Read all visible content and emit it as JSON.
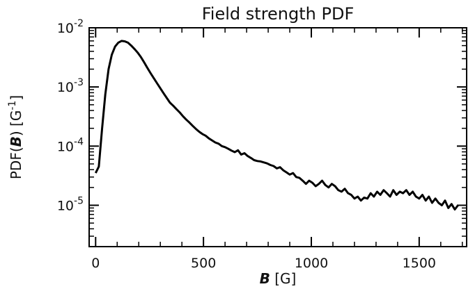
{
  "chart_data": {
    "type": "line",
    "title": "Field strength PDF",
    "xlabel": {
      "var": "B",
      "unit": "[G]"
    },
    "ylabel": {
      "prefix": "PDF(",
      "var": "B",
      "suffix": ") [G",
      "exp": "-1",
      "close": "]"
    },
    "xlim": [
      -30,
      1720
    ],
    "ylim": [
      2e-06,
      0.01
    ],
    "yscale": "log",
    "xticks": [
      0,
      500,
      1000,
      1500
    ],
    "xtick_labels": [
      "0",
      "500",
      "1000",
      "1500"
    ],
    "yticks": [
      {
        "value": 0.01,
        "base": "10",
        "exp": "-2"
      },
      {
        "value": 0.001,
        "base": "10",
        "exp": "-3"
      },
      {
        "value": 0.0001,
        "base": "10",
        "exp": "-4"
      },
      {
        "value": 1e-05,
        "base": "10",
        "exp": "-5"
      }
    ],
    "grid": false,
    "series": [
      {
        "color": "#000000",
        "x": [
          0,
          15,
          30,
          45,
          60,
          75,
          90,
          105,
          120,
          135,
          150,
          165,
          180,
          195,
          210,
          225,
          240,
          255,
          270,
          285,
          300,
          315,
          330,
          345,
          360,
          375,
          390,
          405,
          420,
          435,
          450,
          465,
          480,
          495,
          510,
          525,
          540,
          555,
          570,
          585,
          600,
          615,
          630,
          645,
          660,
          675,
          690,
          705,
          720,
          735,
          750,
          765,
          780,
          795,
          810,
          825,
          840,
          855,
          870,
          885,
          900,
          915,
          930,
          945,
          960,
          975,
          990,
          1005,
          1020,
          1035,
          1050,
          1065,
          1080,
          1095,
          1110,
          1125,
          1140,
          1155,
          1170,
          1185,
          1200,
          1215,
          1230,
          1245,
          1260,
          1275,
          1290,
          1305,
          1320,
          1335,
          1350,
          1365,
          1380,
          1395,
          1410,
          1425,
          1440,
          1455,
          1470,
          1485,
          1500,
          1515,
          1530,
          1545,
          1560,
          1575,
          1590,
          1605,
          1620,
          1635,
          1650,
          1665,
          1680
        ],
        "y": [
          3.5e-05,
          4.5e-05,
          0.0002,
          0.00075,
          0.002,
          0.0035,
          0.0048,
          0.0056,
          0.006,
          0.0059,
          0.0056,
          0.005,
          0.0044,
          0.0038,
          0.0032,
          0.0026,
          0.0021,
          0.0017,
          0.0014,
          0.00115,
          0.00095,
          0.00078,
          0.00065,
          0.00054,
          0.00048,
          0.00042,
          0.00037,
          0.00032,
          0.00028,
          0.00025,
          0.00022,
          0.000195,
          0.000175,
          0.00016,
          0.00015,
          0.000135,
          0.000125,
          0.000115,
          0.00011,
          0.0001,
          9.6e-05,
          9e-05,
          8.4e-05,
          7.9e-05,
          8.5e-05,
          7.2e-05,
          7.6e-05,
          6.8e-05,
          6.3e-05,
          5.8e-05,
          5.6e-05,
          5.5e-05,
          5.3e-05,
          5.1e-05,
          4.8e-05,
          4.6e-05,
          4.2e-05,
          4.4e-05,
          3.9e-05,
          3.6e-05,
          3.3e-05,
          3.5e-05,
          3e-05,
          2.9e-05,
          2.6e-05,
          2.3e-05,
          2.6e-05,
          2.4e-05,
          2.1e-05,
          2.3e-05,
          2.6e-05,
          2.2e-05,
          2e-05,
          2.3e-05,
          2.1e-05,
          1.8e-05,
          1.7e-05,
          1.9e-05,
          1.6e-05,
          1.5e-05,
          1.3e-05,
          1.4e-05,
          1.2e-05,
          1.35e-05,
          1.3e-05,
          1.6e-05,
          1.4e-05,
          1.7e-05,
          1.5e-05,
          1.8e-05,
          1.6e-05,
          1.4e-05,
          1.8e-05,
          1.5e-05,
          1.7e-05,
          1.6e-05,
          1.8e-05,
          1.5e-05,
          1.7e-05,
          1.4e-05,
          1.3e-05,
          1.5e-05,
          1.2e-05,
          1.4e-05,
          1.1e-05,
          1.3e-05,
          1.1e-05,
          1e-05,
          1.2e-05,
          9e-06,
          1.05e-05,
          8.5e-06,
          1e-05
        ]
      }
    ]
  }
}
